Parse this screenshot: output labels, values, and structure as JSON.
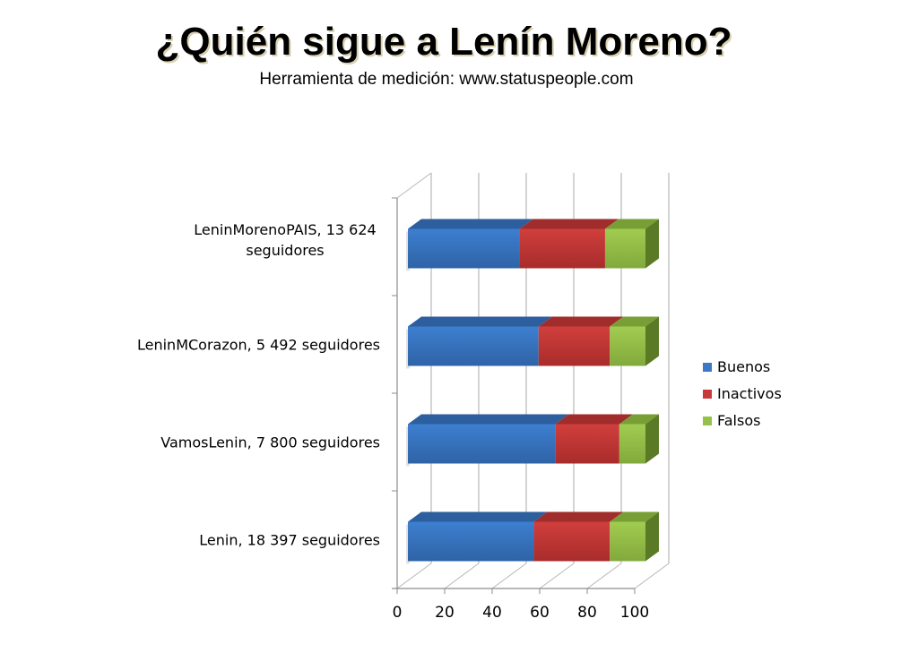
{
  "header": {
    "title": "¿Quién sigue a Lenín Moreno?",
    "subtitle": "Herramienta de medición: www.statuspeople.com"
  },
  "chart_data": {
    "type": "bar",
    "orientation": "horizontal",
    "stacked": "100%",
    "style": "3d",
    "title": "¿Quién sigue a Lenín Moreno?",
    "subtitle": "Herramienta de medición: www.statuspeople.com",
    "categories": [
      "LeninMorenoPAIS, 13 624 seguidores",
      "LeninMCorazon, 5 492 seguidores",
      "VamosLenin, 7 800 seguidores",
      "Lenin, 18 397 seguidores"
    ],
    "category_lines": [
      [
        "LeninMorenoPAIS, 13 624",
        "seguidores"
      ],
      [
        "LeninMCorazon, 5 492 seguidores"
      ],
      [
        "VamosLenin, 7 800 seguidores"
      ],
      [
        "Lenin, 18 397 seguidores"
      ]
    ],
    "series": [
      {
        "name": "Buenos",
        "color": "#3b78c7",
        "values": [
          47,
          55,
          62,
          53
        ]
      },
      {
        "name": "Inactivos",
        "color": "#c83a3a",
        "values": [
          36,
          30,
          27,
          32
        ]
      },
      {
        "name": "Falsos",
        "color": "#95c14a",
        "values": [
          17,
          15,
          11,
          15
        ]
      }
    ],
    "xlabel": "",
    "ylabel": "",
    "xlim": [
      0,
      100
    ],
    "xticks": [
      "0",
      "20",
      "40",
      "60",
      "80",
      "100"
    ],
    "grid": true,
    "legend_position": "right"
  },
  "legend": {
    "items": [
      {
        "label": "Buenos",
        "color": "#3b78c7"
      },
      {
        "label": "Inactivos",
        "color": "#c83a3a"
      },
      {
        "label": "Falsos",
        "color": "#95c14a"
      }
    ]
  }
}
